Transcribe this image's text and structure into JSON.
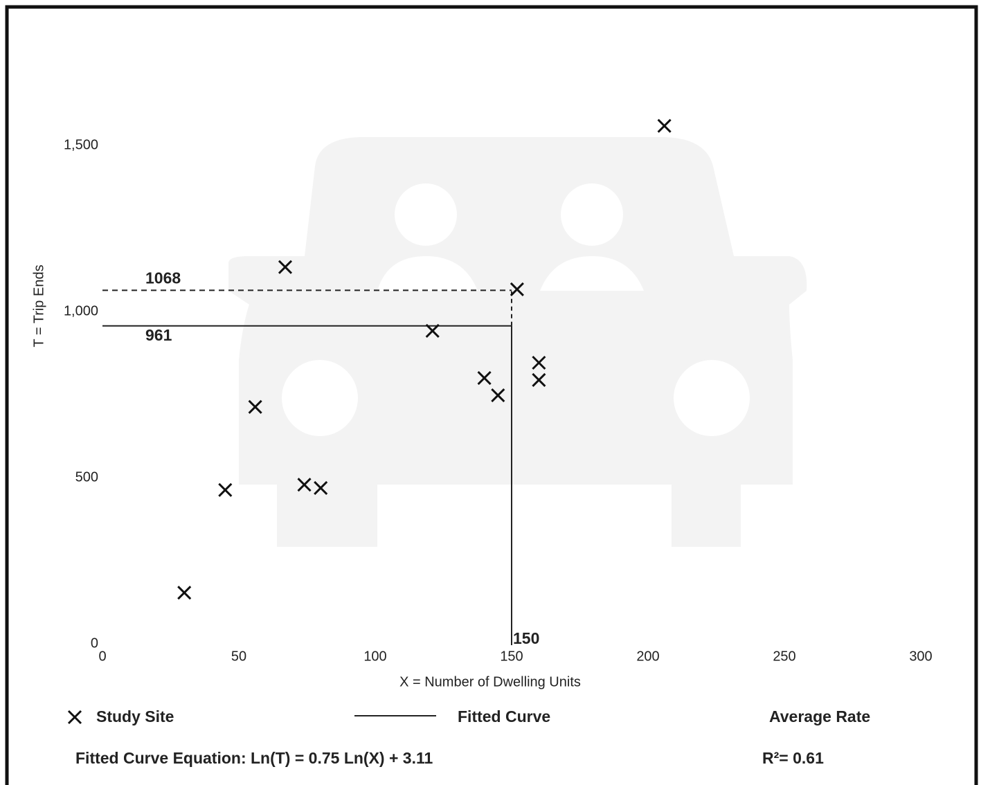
{
  "chart_data": {
    "type": "scatter",
    "x_label": "X = Number of Dwelling Units",
    "y_label": "T = Trip Ends",
    "xlim": [
      0,
      300
    ],
    "xticks": [
      0,
      50,
      100,
      150,
      200,
      250,
      300
    ],
    "ylim": [
      0,
      1500
    ],
    "yticks": [
      0,
      500,
      {
        "value": 1000,
        "label": "1,000"
      },
      {
        "value": 1500,
        "label": "1,500"
      }
    ],
    "series": [
      {
        "name": "Study Site",
        "color": "#111111",
        "x": [
          30,
          45,
          56,
          67,
          74,
          80,
          121,
          140,
          145,
          152,
          160,
          160,
          206
        ],
        "values": [
          158,
          467,
          717,
          1138,
          483,
          473,
          946,
          804,
          752,
          1071,
          850,
          798,
          1563
        ]
      }
    ],
    "legend_items": [
      "Fitted Curve",
      "Average Rate"
    ],
    "projection": {
      "x": 150,
      "fitted": 961,
      "average": 1068
    },
    "equation": "Fitted Curve Equation: Ln(T) = 0.75 Ln(X) + 3.11",
    "r_squared": "R²= 0.61"
  }
}
